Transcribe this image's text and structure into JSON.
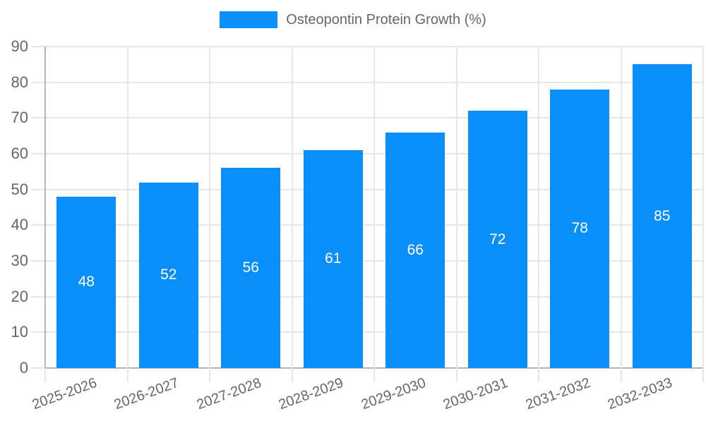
{
  "chart_data": {
    "type": "bar",
    "title": "",
    "legend": {
      "label": "Osteopontin Protein Growth (%)",
      "position": "top-center"
    },
    "categories": [
      "2025-2026",
      "2026-2027",
      "2027-2028",
      "2028-2029",
      "2029-2030",
      "2030-2031",
      "2031-2032",
      "2032-2033"
    ],
    "values": [
      48,
      52,
      56,
      61,
      66,
      72,
      78,
      85
    ],
    "ylabel": "",
    "xlabel": "",
    "ylim": [
      0,
      90
    ],
    "ytick_step": 10,
    "grid": true,
    "x_label_rotation_deg": -20,
    "bar_color": "#0a8ef9",
    "value_label_color": "#ffffff",
    "axis_text_color": "#666666",
    "gridline_color": "#e6e6e6",
    "axis_line_color": "#b4b4b4",
    "background_color": "#ffffff"
  }
}
